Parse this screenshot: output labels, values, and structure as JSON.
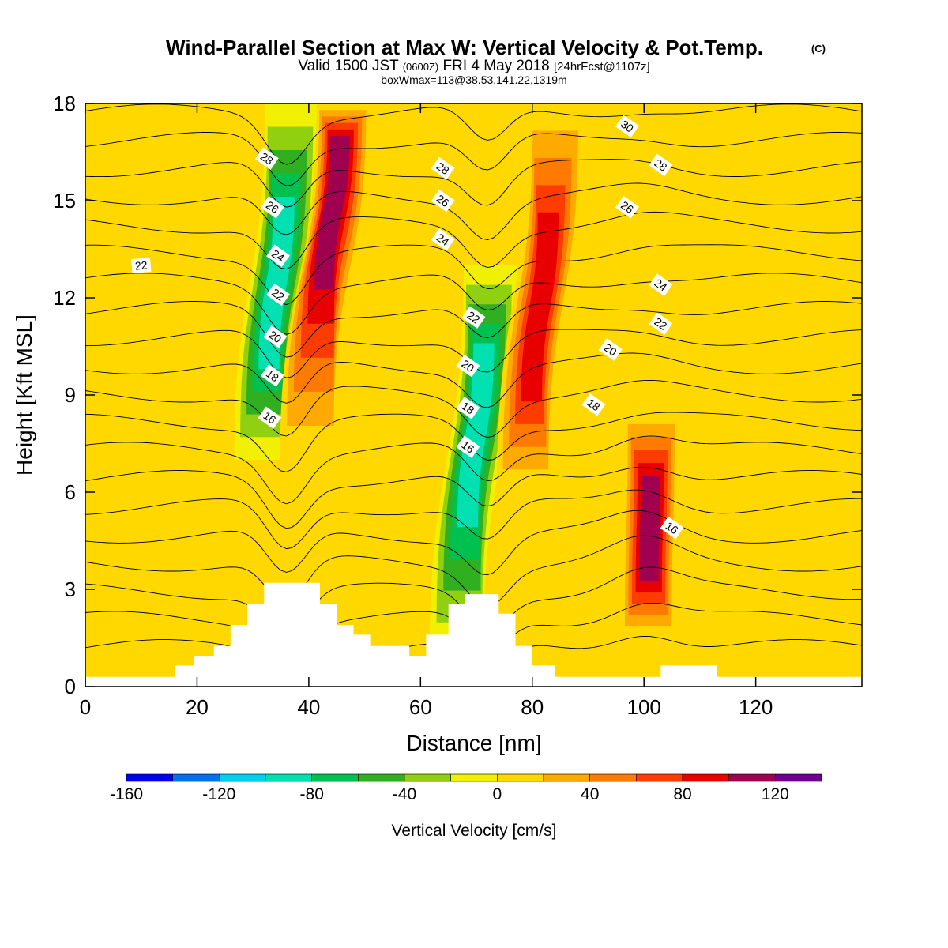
{
  "chart_data": {
    "type": "heatmap",
    "title": "Wind-Parallel Section at Max W: Vertical Velocity & Pot.Temp.",
    "title_mark": "(C)",
    "subtitle": {
      "valid": "Valid 1500 JST",
      "utc": "(0600Z)",
      "date": "FRI 4 May 2018",
      "fcst": "[24hrFcst@1107z]"
    },
    "note": "boxWmax=113@38.53,141.22,1319m",
    "xlabel": "Distance [nm]",
    "ylabel": "Height [Kft MSL]",
    "xlim": [
      0,
      139
    ],
    "ylim": [
      0,
      18
    ],
    "x_ticks": [
      0,
      20,
      40,
      60,
      80,
      100,
      120
    ],
    "y_ticks": [
      0,
      3,
      6,
      9,
      12,
      15,
      18
    ],
    "colorbar": {
      "title": "Vertical Velocity [cm/s]",
      "levels": [
        -160,
        -140,
        -120,
        -100,
        -80,
        -60,
        -40,
        -20,
        0,
        20,
        40,
        60,
        80,
        100,
        120,
        140
      ],
      "labels": [
        -160,
        -120,
        -80,
        -40,
        0,
        40,
        80,
        120
      ],
      "colors": [
        "#0000f0",
        "#0070f0",
        "#00d0f0",
        "#00e0b0",
        "#00c050",
        "#30b020",
        "#90d010",
        "#f0f000",
        "#ffd800",
        "#ffaa00",
        "#ff7a00",
        "#ff3c00",
        "#e80000",
        "#a00050",
        "#700090"
      ],
      "field_background": "#ffd800"
    },
    "w_features": [
      {
        "kind": "down",
        "x": 34,
        "zmin": 7,
        "zmax": 18,
        "tilt": 0.6,
        "peak": -110,
        "core_z": 12
      },
      {
        "kind": "up",
        "x": 45,
        "zmin": 7,
        "zmax": 18,
        "tilt": 0.7,
        "peak": 130,
        "core_z": 16
      },
      {
        "kind": "down",
        "x": 70,
        "zmin": 1,
        "zmax": 13,
        "tilt": 0.6,
        "peak": -100,
        "core_z": 8
      },
      {
        "kind": "up",
        "x": 81,
        "zmin": 6,
        "zmax": 18,
        "tilt": 0.6,
        "peak": 110,
        "core_z": 11
      },
      {
        "kind": "up",
        "x": 101,
        "zmin": 1.5,
        "zmax": 8.5,
        "tilt": 0.1,
        "peak": 130,
        "core_z": 4.5
      },
      {
        "kind": "weak",
        "x": 10,
        "zmin": 10,
        "zmax": 18,
        "peak": -10
      },
      {
        "kind": "weak",
        "x": 125,
        "zmin": 6,
        "zmax": 18,
        "peak": -10
      },
      {
        "kind": "weak",
        "x": 55,
        "zmin": 2,
        "zmax": 18,
        "peak": -15
      }
    ],
    "theta_isentropes": [
      12,
      13,
      14,
      15,
      16,
      17,
      18,
      19,
      20,
      21,
      22,
      23,
      24,
      25,
      26,
      27,
      28,
      29,
      30,
      31
    ],
    "isentrope_labels": [
      {
        "value": "22",
        "x": 10,
        "y": 13.0
      },
      {
        "value": "28",
        "x": 32.5,
        "y": 16.3
      },
      {
        "value": "26",
        "x": 33.5,
        "y": 14.8
      },
      {
        "value": "24",
        "x": 34.5,
        "y": 13.3
      },
      {
        "value": "22",
        "x": 34.5,
        "y": 12.1
      },
      {
        "value": "20",
        "x": 34,
        "y": 10.8
      },
      {
        "value": "18",
        "x": 33.5,
        "y": 9.6
      },
      {
        "value": "16",
        "x": 33,
        "y": 8.3
      },
      {
        "value": "28",
        "x": 64,
        "y": 16.0
      },
      {
        "value": "26",
        "x": 64,
        "y": 15.0
      },
      {
        "value": "24",
        "x": 64,
        "y": 13.8
      },
      {
        "value": "22",
        "x": 69.5,
        "y": 11.4
      },
      {
        "value": "20",
        "x": 68.5,
        "y": 9.9
      },
      {
        "value": "18",
        "x": 68.5,
        "y": 8.6
      },
      {
        "value": "16",
        "x": 68.5,
        "y": 7.4
      },
      {
        "value": "30",
        "x": 97,
        "y": 17.3
      },
      {
        "value": "28",
        "x": 103,
        "y": 16.1
      },
      {
        "value": "26",
        "x": 97,
        "y": 14.8
      },
      {
        "value": "24",
        "x": 103,
        "y": 12.4
      },
      {
        "value": "22",
        "x": 103,
        "y": 11.2
      },
      {
        "value": "20",
        "x": 94,
        "y": 10.4
      },
      {
        "value": "18",
        "x": 91,
        "y": 8.7
      },
      {
        "value": "16",
        "x": 105,
        "y": 4.9
      }
    ],
    "terrain": [
      {
        "x": 0,
        "z": 0.3
      },
      {
        "x": 16,
        "z": 0.3
      },
      {
        "x": 16,
        "z": 0.65
      },
      {
        "x": 19.5,
        "z": 0.65
      },
      {
        "x": 19.5,
        "z": 0.95
      },
      {
        "x": 23,
        "z": 0.95
      },
      {
        "x": 23,
        "z": 1.25
      },
      {
        "x": 26,
        "z": 1.25
      },
      {
        "x": 26,
        "z": 1.9
      },
      {
        "x": 29,
        "z": 1.9
      },
      {
        "x": 29,
        "z": 2.55
      },
      {
        "x": 32,
        "z": 2.55
      },
      {
        "x": 32,
        "z": 3.2
      },
      {
        "x": 42,
        "z": 3.2
      },
      {
        "x": 42,
        "z": 2.55
      },
      {
        "x": 45,
        "z": 2.55
      },
      {
        "x": 45,
        "z": 1.9
      },
      {
        "x": 48,
        "z": 1.9
      },
      {
        "x": 48,
        "z": 1.6
      },
      {
        "x": 51,
        "z": 1.6
      },
      {
        "x": 51,
        "z": 1.25
      },
      {
        "x": 58,
        "z": 1.25
      },
      {
        "x": 58,
        "z": 0.95
      },
      {
        "x": 61,
        "z": 0.95
      },
      {
        "x": 61,
        "z": 1.6
      },
      {
        "x": 65,
        "z": 1.6
      },
      {
        "x": 65,
        "z": 2.55
      },
      {
        "x": 68,
        "z": 2.55
      },
      {
        "x": 68,
        "z": 2.85
      },
      {
        "x": 74,
        "z": 2.85
      },
      {
        "x": 74,
        "z": 2.25
      },
      {
        "x": 77,
        "z": 2.25
      },
      {
        "x": 77,
        "z": 1.25
      },
      {
        "x": 80,
        "z": 1.25
      },
      {
        "x": 80,
        "z": 0.65
      },
      {
        "x": 84,
        "z": 0.65
      },
      {
        "x": 84,
        "z": 0.3
      },
      {
        "x": 103,
        "z": 0.3
      },
      {
        "x": 103,
        "z": 0.65
      },
      {
        "x": 113,
        "z": 0.65
      },
      {
        "x": 113,
        "z": 0.3
      },
      {
        "x": 139,
        "z": 0.3
      }
    ]
  }
}
